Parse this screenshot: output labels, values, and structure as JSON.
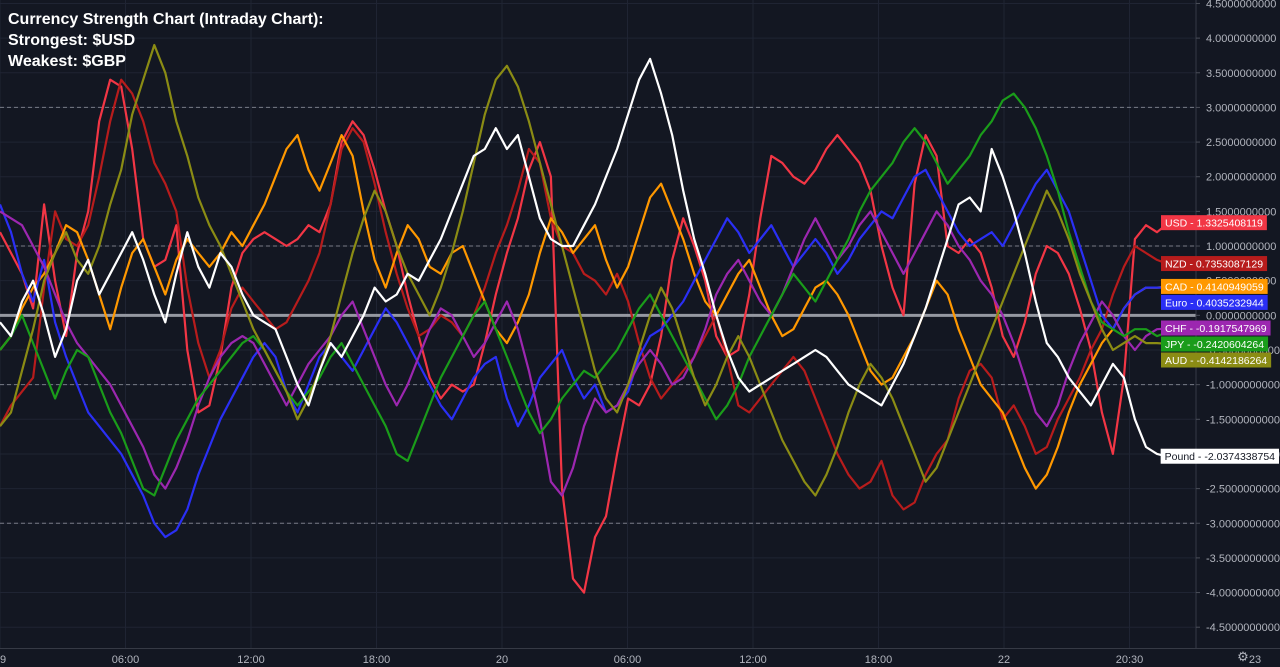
{
  "header": {
    "title": "Currency Strength Chart (Intraday Chart):",
    "strongest": "Strongest: $USD",
    "weakest": "Weakest: $GBP"
  },
  "chart_data": {
    "type": "line",
    "title": "Currency Strength Chart (Intraday Chart):",
    "xlabel": "",
    "ylabel": "",
    "ylim": [
      -4.8,
      4.55
    ],
    "x_ticks": [
      "9",
      "06:00",
      "12:00",
      "18:00",
      "20",
      "06:00",
      "12:00",
      "18:00",
      "22",
      "20:30",
      "23",
      "06:00"
    ],
    "y_ticks": [
      "4.5000000000",
      "4.0000000000",
      "3.5000000000",
      "3.0000000000",
      "2.5000000000",
      "2.0000000000",
      "1.5000000000",
      "1.0000000000",
      "0.5000000000",
      "0.0000000000",
      "-0.5000000000",
      "-1.0000000000",
      "-1.5000000000",
      "-2.0000000000",
      "-2.5000000000",
      "-3.0000000000",
      "-3.5000000000",
      "-4.0000000000",
      "-4.5000000000"
    ],
    "reference_lines": [
      3,
      1,
      0,
      -1,
      -3
    ],
    "grid": true,
    "legend_placement": "right price axis",
    "series": [
      {
        "name": "USD",
        "label": "USD - 1.3325408119",
        "color": "#f23645",
        "values": [
          1.2,
          0.9,
          0.6,
          0.1,
          1.6,
          0.5,
          -0.3,
          0.9,
          1.5,
          2.8,
          3.4,
          3.3,
          2.4,
          1.1,
          0.7,
          0.8,
          1.3,
          -0.5,
          -1.4,
          -1.3,
          -0.6,
          0.4,
          0.9,
          1.1,
          1.2,
          1.1,
          1.0,
          1.1,
          1.3,
          1.2,
          1.6,
          2.5,
          2.8,
          2.6,
          2.1,
          1.5,
          1.0,
          0.3,
          -0.3,
          -0.9,
          -1.2,
          -1.0,
          -1.1,
          -1.0,
          -0.4,
          0.3,
          0.9,
          1.4,
          2.1,
          2.5,
          2.0,
          -2.5,
          -3.8,
          -4.0,
          -3.2,
          -2.9,
          -2.0,
          -1.2,
          -1.3,
          -1.0,
          -0.3,
          0.8,
          1.4,
          1.0,
          0.5,
          -0.3,
          -0.6,
          -0.5,
          0.3,
          1.4,
          2.3,
          2.2,
          2.0,
          1.9,
          2.1,
          2.4,
          2.6,
          2.4,
          2.2,
          1.8,
          1.0,
          0.4,
          0.0,
          1.9,
          2.6,
          2.3,
          1.0,
          0.9,
          1.1,
          0.9,
          0.4,
          -0.3,
          -0.6,
          -0.1,
          0.6,
          1.0,
          0.9,
          0.6,
          0.1,
          -0.5,
          -1.4,
          -2.0,
          -0.9,
          1.1,
          1.3,
          1.2,
          1.33
        ]
      },
      {
        "name": "NZD",
        "label": "NZD - 0.7353087129",
        "color": "#b71c1c",
        "values": [
          -1.6,
          -1.3,
          -1.1,
          -0.9,
          0.4,
          1.5,
          1.1,
          1.0,
          1.3,
          2.0,
          2.8,
          3.4,
          3.2,
          2.8,
          2.2,
          1.9,
          1.5,
          0.4,
          -0.4,
          -0.9,
          -0.5,
          0.1,
          0.4,
          0.2,
          0.0,
          -0.2,
          -0.1,
          0.2,
          0.5,
          0.9,
          1.6,
          2.4,
          2.7,
          2.5,
          1.9,
          1.2,
          0.6,
          0.1,
          -0.3,
          -0.2,
          0.0,
          -0.1,
          -0.3,
          0.0,
          0.4,
          0.9,
          1.3,
          1.8,
          2.4,
          2.2,
          1.4,
          1.0,
          0.9,
          0.6,
          0.5,
          0.3,
          0.6,
          0.2,
          -0.4,
          -0.9,
          -1.2,
          -1.0,
          -0.8,
          -0.6,
          -0.3,
          0.0,
          -0.6,
          -1.3,
          -1.4,
          -1.2,
          -1.0,
          -0.8,
          -0.6,
          -0.8,
          -1.2,
          -1.6,
          -2.0,
          -2.3,
          -2.5,
          -2.4,
          -2.1,
          -2.6,
          -2.8,
          -2.7,
          -2.3,
          -2.0,
          -1.8,
          -1.2,
          -0.8,
          -0.7,
          -0.9,
          -1.5,
          -1.3,
          -1.6,
          -2.0,
          -1.9,
          -1.5,
          -1.2,
          -0.9,
          -0.5,
          -0.2,
          0.3,
          0.7,
          1.0,
          0.9,
          0.8,
          0.74
        ]
      },
      {
        "name": "CAD",
        "label": "CAD - 0.4140949059",
        "color": "#ff9800",
        "values": [
          -0.5,
          -0.3,
          0.1,
          0.4,
          0.6,
          0.9,
          1.3,
          1.2,
          0.8,
          0.3,
          -0.2,
          0.4,
          0.9,
          1.1,
          0.7,
          0.3,
          0.8,
          1.1,
          0.9,
          0.7,
          0.9,
          1.2,
          1.0,
          1.3,
          1.6,
          2.0,
          2.4,
          2.6,
          2.1,
          1.8,
          2.2,
          2.6,
          2.3,
          1.5,
          0.8,
          0.4,
          0.9,
          1.3,
          1.1,
          0.7,
          0.6,
          0.9,
          1.0,
          0.6,
          0.2,
          -0.2,
          -0.4,
          -0.1,
          0.3,
          0.9,
          1.4,
          1.2,
          0.9,
          1.1,
          1.3,
          0.8,
          0.4,
          0.7,
          1.2,
          1.7,
          1.9,
          1.5,
          1.1,
          0.6,
          0.2,
          0.0,
          0.3,
          0.6,
          0.8,
          0.4,
          0.0,
          -0.3,
          -0.2,
          0.1,
          0.4,
          0.5,
          0.3,
          0.0,
          -0.4,
          -0.8,
          -1.0,
          -0.9,
          -0.6,
          -0.3,
          0.1,
          0.5,
          0.3,
          -0.2,
          -0.6,
          -1.0,
          -1.2,
          -1.4,
          -1.8,
          -2.2,
          -2.5,
          -2.3,
          -1.9,
          -1.4,
          -1.0,
          -0.7,
          -0.4,
          -0.2,
          0.1,
          0.3,
          0.4,
          0.4,
          0.41
        ]
      },
      {
        "name": "Euro",
        "label": "Euro - 0.4035232944",
        "color": "#2a2ff5",
        "values": [
          1.6,
          1.2,
          0.6,
          0.2,
          0.8,
          -0.1,
          -0.6,
          -1.0,
          -1.4,
          -1.6,
          -1.8,
          -2.0,
          -2.3,
          -2.6,
          -3.0,
          -3.2,
          -3.1,
          -2.8,
          -2.3,
          -1.9,
          -1.5,
          -1.2,
          -0.9,
          -0.6,
          -0.4,
          -0.6,
          -1.1,
          -1.4,
          -1.0,
          -0.6,
          -0.4,
          -0.6,
          -0.8,
          -0.5,
          -0.2,
          0.1,
          -0.1,
          -0.4,
          -0.7,
          -1.0,
          -1.3,
          -1.5,
          -1.2,
          -0.9,
          -0.7,
          -0.6,
          -1.2,
          -1.6,
          -1.3,
          -0.9,
          -0.7,
          -0.5,
          -0.9,
          -1.2,
          -1.0,
          -1.4,
          -1.3,
          -1.1,
          -0.6,
          -0.3,
          -0.2,
          0.0,
          0.2,
          0.5,
          0.8,
          1.1,
          1.4,
          1.2,
          0.9,
          1.1,
          1.3,
          1.0,
          0.7,
          0.9,
          1.1,
          0.9,
          0.6,
          0.8,
          1.1,
          1.3,
          1.5,
          1.4,
          1.7,
          2.0,
          2.1,
          1.8,
          1.5,
          1.2,
          1.0,
          1.1,
          1.2,
          1.0,
          1.3,
          1.6,
          1.9,
          2.1,
          1.8,
          1.5,
          1.0,
          0.5,
          0.0,
          -0.2,
          0.1,
          0.3,
          0.4,
          0.4,
          0.4
        ]
      },
      {
        "name": "CHF",
        "label": "CHF - -0.1917547969",
        "color": "#9c27b0",
        "values": [
          1.5,
          1.4,
          1.3,
          1.0,
          0.7,
          0.3,
          -0.1,
          -0.4,
          -0.6,
          -0.8,
          -1.0,
          -1.3,
          -1.6,
          -1.9,
          -2.3,
          -2.5,
          -2.2,
          -1.8,
          -1.3,
          -0.9,
          -0.6,
          -0.4,
          -0.3,
          -0.4,
          -0.7,
          -1.0,
          -1.3,
          -1.0,
          -0.7,
          -0.5,
          -0.3,
          0.0,
          0.2,
          -0.2,
          -0.6,
          -1.0,
          -1.3,
          -1.0,
          -0.6,
          -0.2,
          0.1,
          0.0,
          -0.3,
          -0.6,
          -0.4,
          -0.1,
          0.2,
          -0.2,
          -0.8,
          -1.5,
          -2.4,
          -2.6,
          -2.2,
          -1.6,
          -1.2,
          -1.4,
          -1.3,
          -1.0,
          -0.7,
          -0.5,
          -0.7,
          -1.0,
          -0.9,
          -0.6,
          -0.2,
          0.3,
          0.6,
          0.8,
          0.5,
          0.2,
          0.0,
          0.3,
          0.7,
          1.1,
          1.4,
          1.1,
          0.8,
          1.0,
          1.3,
          1.5,
          1.2,
          0.9,
          0.6,
          0.9,
          1.2,
          1.5,
          1.3,
          1.0,
          0.8,
          0.5,
          0.3,
          0.0,
          -0.4,
          -0.9,
          -1.4,
          -1.6,
          -1.3,
          -0.8,
          -0.4,
          -0.1,
          0.2,
          0.0,
          -0.3,
          -0.5,
          -0.3,
          -0.2,
          -0.19
        ]
      },
      {
        "name": "JPY",
        "label": "JPY - -0.2420604264",
        "color": "#1a9c1a",
        "values": [
          -0.5,
          -0.3,
          0.0,
          -0.4,
          -0.8,
          -1.2,
          -0.8,
          -0.5,
          -0.6,
          -1.0,
          -1.4,
          -1.7,
          -2.1,
          -2.5,
          -2.6,
          -2.2,
          -1.8,
          -1.5,
          -1.2,
          -1.0,
          -0.8,
          -0.6,
          -0.4,
          -0.3,
          -0.5,
          -0.8,
          -1.1,
          -1.3,
          -1.1,
          -0.9,
          -0.6,
          -0.4,
          -0.7,
          -1.0,
          -1.3,
          -1.6,
          -2.0,
          -2.1,
          -1.7,
          -1.3,
          -0.9,
          -0.6,
          -0.3,
          0.0,
          0.2,
          -0.2,
          -0.6,
          -1.0,
          -1.4,
          -1.7,
          -1.5,
          -1.2,
          -1.0,
          -0.8,
          -0.9,
          -0.7,
          -0.5,
          -0.2,
          0.1,
          0.3,
          0.0,
          -0.3,
          -0.6,
          -0.9,
          -1.2,
          -1.5,
          -1.3,
          -1.0,
          -0.6,
          -0.3,
          0.0,
          0.3,
          0.6,
          0.4,
          0.2,
          0.5,
          0.8,
          1.1,
          1.5,
          1.8,
          2.0,
          2.2,
          2.5,
          2.7,
          2.5,
          2.2,
          1.9,
          2.1,
          2.3,
          2.6,
          2.8,
          3.1,
          3.2,
          3.0,
          2.7,
          2.3,
          1.8,
          1.2,
          0.7,
          0.2,
          -0.1,
          -0.2,
          -0.3,
          -0.2,
          -0.2,
          -0.3,
          -0.24
        ]
      },
      {
        "name": "AUD",
        "label": "AUD - -0.4142186264",
        "color": "#8b8c14",
        "values": [
          -1.6,
          -1.4,
          -0.8,
          -0.2,
          0.5,
          0.9,
          1.2,
          0.8,
          0.6,
          1.0,
          1.6,
          2.1,
          2.9,
          3.4,
          3.9,
          3.5,
          2.8,
          2.3,
          1.7,
          1.3,
          1.0,
          0.6,
          0.2,
          -0.2,
          -0.5,
          -0.8,
          -1.1,
          -1.5,
          -1.2,
          -0.8,
          -0.3,
          0.3,
          0.9,
          1.4,
          1.8,
          1.5,
          1.0,
          0.6,
          0.3,
          0.0,
          0.4,
          0.9,
          1.5,
          2.2,
          2.9,
          3.4,
          3.6,
          3.3,
          2.8,
          2.2,
          1.6,
          1.0,
          0.4,
          -0.2,
          -0.8,
          -1.2,
          -1.4,
          -1.0,
          -0.5,
          0.0,
          0.4,
          0.1,
          -0.4,
          -0.9,
          -1.3,
          -1.0,
          -0.6,
          -0.3,
          -0.6,
          -1.0,
          -1.4,
          -1.8,
          -2.1,
          -2.4,
          -2.6,
          -2.3,
          -1.9,
          -1.4,
          -1.0,
          -0.7,
          -0.9,
          -1.2,
          -1.6,
          -2.0,
          -2.4,
          -2.2,
          -1.8,
          -1.4,
          -1.0,
          -0.6,
          -0.2,
          0.2,
          0.6,
          1.0,
          1.4,
          1.8,
          1.5,
          1.1,
          0.6,
          0.2,
          -0.2,
          -0.5,
          -0.4,
          -0.3,
          -0.4,
          -0.4,
          -0.41
        ]
      },
      {
        "name": "Pound",
        "label": "Pound - -2.0374338754",
        "color": "#ffffff",
        "values": [
          -0.1,
          -0.3,
          0.2,
          0.5,
          0.0,
          -0.6,
          -0.2,
          0.5,
          0.8,
          0.3,
          0.6,
          0.9,
          1.2,
          0.8,
          0.3,
          -0.1,
          0.6,
          1.2,
          0.7,
          0.4,
          0.9,
          0.7,
          0.3,
          0.0,
          -0.1,
          -0.2,
          -0.6,
          -1.0,
          -1.3,
          -0.8,
          -0.4,
          -0.6,
          -0.3,
          0.0,
          0.4,
          0.2,
          0.3,
          0.6,
          0.5,
          0.8,
          1.1,
          1.5,
          1.9,
          2.3,
          2.4,
          2.7,
          2.4,
          2.6,
          2.0,
          1.4,
          1.1,
          1.0,
          1.0,
          1.3,
          1.6,
          2.0,
          2.4,
          2.9,
          3.4,
          3.7,
          3.2,
          2.6,
          1.8,
          1.1,
          0.6,
          0.0,
          -0.5,
          -0.9,
          -1.1,
          -1.0,
          -0.9,
          -0.8,
          -0.7,
          -0.6,
          -0.5,
          -0.6,
          -0.8,
          -1.0,
          -1.1,
          -1.2,
          -1.3,
          -1.0,
          -0.7,
          -0.3,
          0.1,
          0.6,
          1.1,
          1.6,
          1.7,
          1.5,
          2.4,
          2.0,
          1.5,
          0.9,
          0.2,
          -0.4,
          -0.6,
          -0.9,
          -1.1,
          -1.3,
          -1.0,
          -0.7,
          -0.9,
          -1.5,
          -1.9,
          -2.0,
          -2.04
        ]
      }
    ]
  },
  "icons": {
    "settings": "gear-icon"
  }
}
